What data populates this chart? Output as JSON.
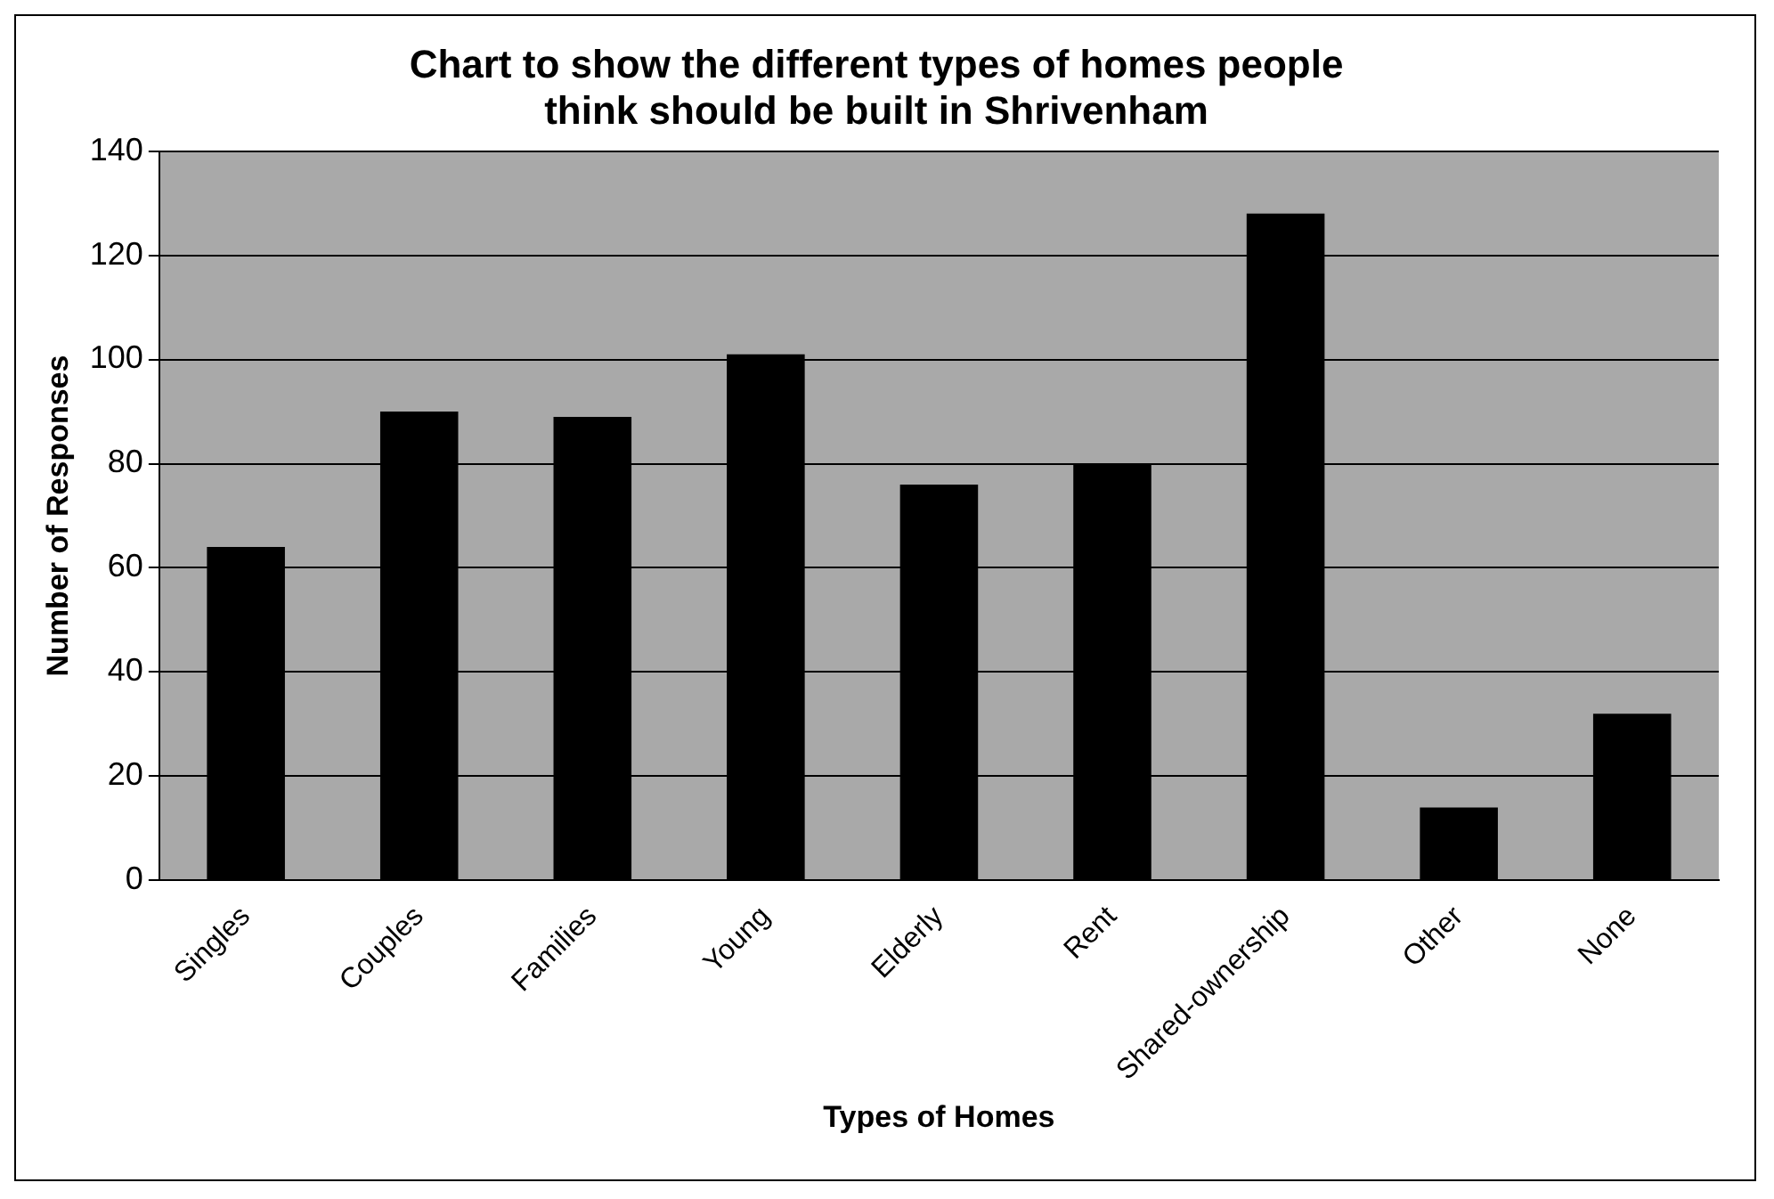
{
  "chart_data": {
    "type": "bar",
    "title": [
      "Chart to show the different types of homes people",
      "think should be built in Shrivenham"
    ],
    "xlabel": "Types of Homes",
    "ylabel": "Number of Responses",
    "categories": [
      "Singles",
      "Couples",
      "Families",
      "Young",
      "Elderly",
      "Rent",
      "Shared-ownership",
      "Other",
      "None"
    ],
    "values": [
      64,
      90,
      89,
      101,
      76,
      80,
      128,
      14,
      32
    ],
    "color": "#000000",
    "ylim": [
      0,
      140
    ],
    "yticks": [
      0,
      20,
      40,
      60,
      80,
      100,
      120,
      140
    ],
    "grid": "y",
    "legend": false
  }
}
